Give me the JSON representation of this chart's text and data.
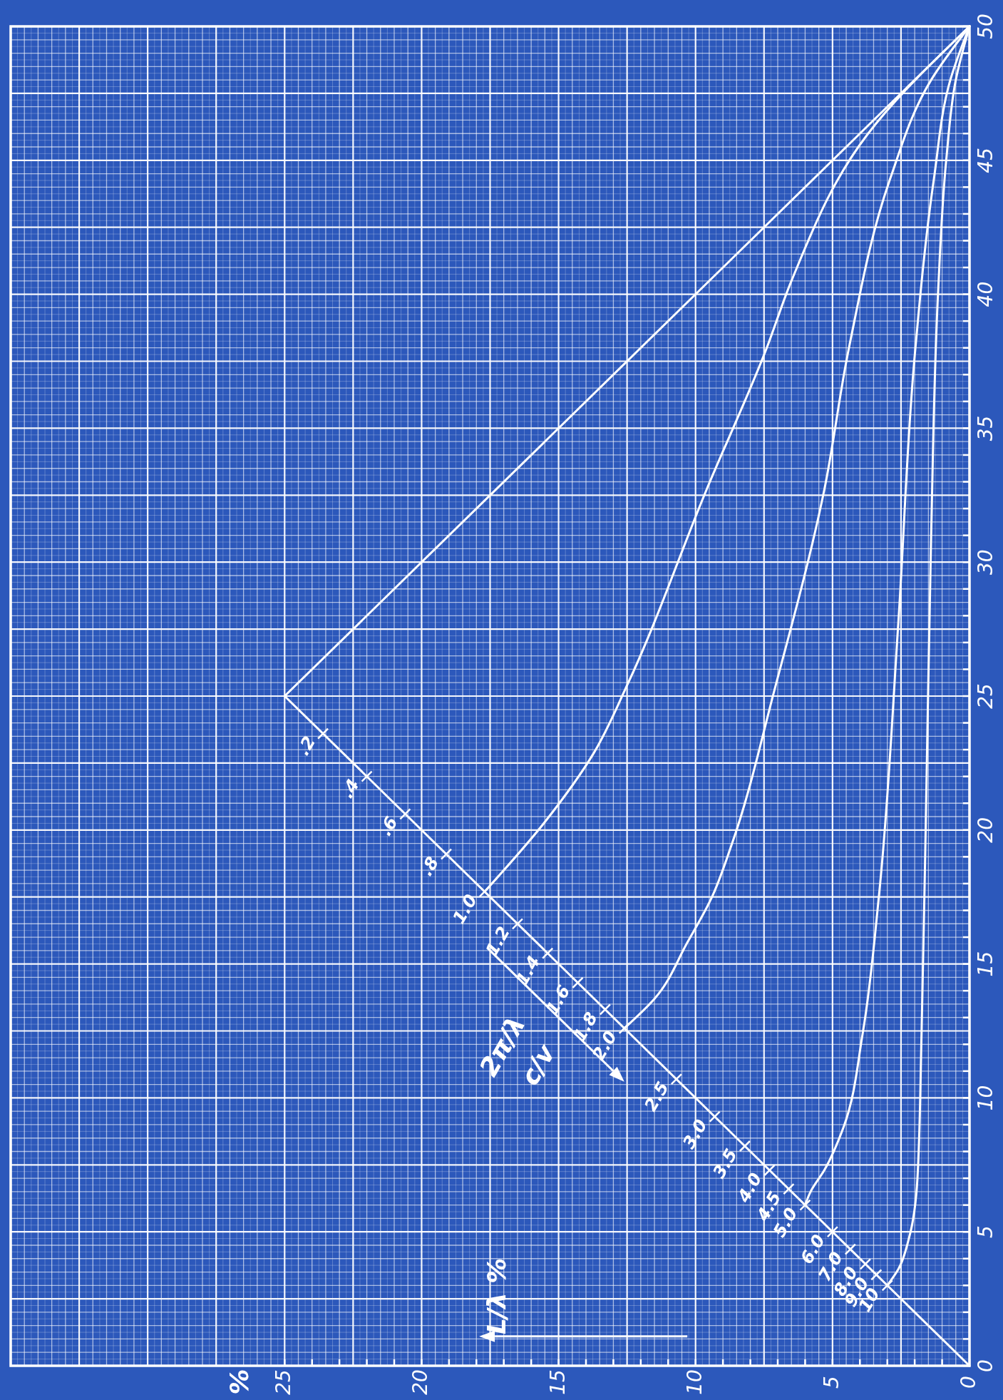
{
  "chart_data": {
    "type": "line",
    "xlim": [
      35,
      0
    ],
    "ylim": [
      0,
      50
    ],
    "xticks": [
      25,
      20,
      15,
      10,
      5,
      0
    ],
    "yticks": [
      0,
      5,
      10,
      15,
      20,
      25,
      30,
      35,
      40,
      45,
      50
    ],
    "grid": true,
    "series": [
      {
        "color": "#ffffff",
        "x": [
          0,
          25
        ],
        "values": [
          0,
          25
        ]
      },
      {
        "color": "#ffffff",
        "x": [
          25,
          0
        ],
        "values": [
          25,
          50
        ]
      },
      {
        "color": "#ffffff",
        "x": [
          17.7,
          15.5,
          13.7,
          12.5,
          9.6,
          7.4,
          6.5,
          3.7,
          0
        ],
        "values": [
          17.7,
          20.3,
          22.9,
          25.4,
          32.7,
          38,
          40.5,
          46,
          50
        ]
      },
      {
        "color": "#ffffff",
        "x": [
          12.6,
          11.5,
          10.3,
          9.4,
          8.7,
          7.1,
          5.3,
          4.4,
          2.9,
          1.4,
          0
        ],
        "values": [
          12.6,
          13.7,
          15.8,
          17.5,
          19.4,
          25.3,
          32.7,
          38,
          44.3,
          48,
          50
        ]
      },
      {
        "color": "#ffffff",
        "x": [
          6,
          5.8,
          5.3,
          4.6,
          3.9,
          3.3,
          2.6,
          2,
          1.3,
          0.7,
          0
        ],
        "values": [
          6,
          6.5,
          7.3,
          8.9,
          12.4,
          17.6,
          27.7,
          37.7,
          44.3,
          48,
          50
        ]
      },
      {
        "color": "#ffffff",
        "x": [
          3,
          2.6,
          2.2,
          1.9,
          1.75,
          1.6,
          1.4,
          1.15,
          0.85,
          0.5,
          0
        ],
        "values": [
          3,
          3.6,
          4.8,
          7,
          12.4,
          20,
          31,
          40,
          45,
          48,
          50
        ]
      }
    ],
    "annotations": [
      {
        "text": ".2",
        "x": 23.6,
        "y": 23.6
      },
      {
        "text": ".4",
        "x": 22,
        "y": 22
      },
      {
        "text": ".6",
        "x": 20.6,
        "y": 20.6
      },
      {
        "text": ".8",
        "x": 19.1,
        "y": 19.1
      },
      {
        "text": "1.0",
        "x": 17.7,
        "y": 17.7
      },
      {
        "text": "1.2",
        "x": 16.5,
        "y": 16.5
      },
      {
        "text": "1.4",
        "x": 15.4,
        "y": 15.4
      },
      {
        "text": "1.6",
        "x": 14.3,
        "y": 14.3
      },
      {
        "text": "1.8",
        "x": 13.3,
        "y": 13.3
      },
      {
        "text": "2.0",
        "x": 12.6,
        "y": 12.6
      },
      {
        "text": "2.5",
        "x": 10.7,
        "y": 10.7
      },
      {
        "text": "3.0",
        "x": 9.3,
        "y": 9.3
      },
      {
        "text": "3.5",
        "x": 8.2,
        "y": 8.2
      },
      {
        "text": "4.0",
        "x": 7.3,
        "y": 7.3
      },
      {
        "text": "4.5",
        "x": 6.6,
        "y": 6.6
      },
      {
        "text": "5.0",
        "x": 6,
        "y": 6
      },
      {
        "text": "6.0",
        "x": 5,
        "y": 5
      },
      {
        "text": "7.0",
        "x": 4.35,
        "y": 4.35
      },
      {
        "text": "8.0",
        "x": 3.8,
        "y": 3.8
      },
      {
        "text": "9.0",
        "x": 3.4,
        "y": 3.4
      },
      {
        "text": "10",
        "x": 3,
        "y": 3
      },
      "2π/λ",
      "c/v",
      "L/λ %",
      "%"
    ]
  }
}
